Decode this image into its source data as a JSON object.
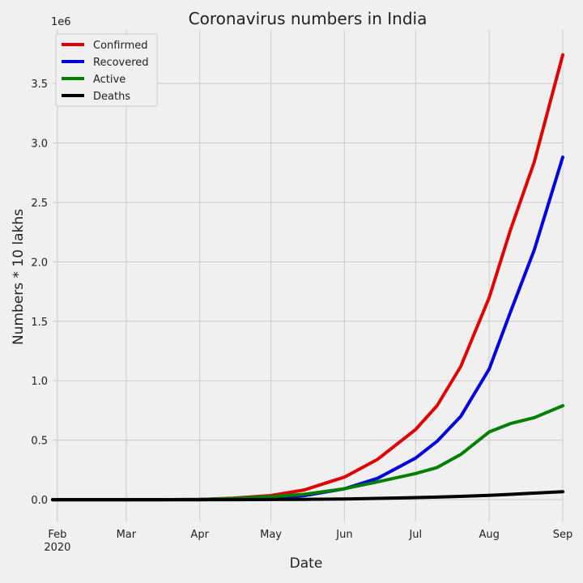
{
  "chart_data": {
    "type": "line",
    "title": "Coronavirus numbers in India",
    "xlabel": "Date",
    "ylabel": "Numbers * 10 lakhs",
    "offset_label": "1e6",
    "x_ticks": [
      {
        "date": "2020-02-01",
        "label": "Feb",
        "sublabel": "2020"
      },
      {
        "date": "2020-03-01",
        "label": "Mar"
      },
      {
        "date": "2020-04-01",
        "label": "Apr"
      },
      {
        "date": "2020-05-01",
        "label": "May"
      },
      {
        "date": "2020-06-01",
        "label": "Jun"
      },
      {
        "date": "2020-07-01",
        "label": "Jul"
      },
      {
        "date": "2020-08-01",
        "label": "Aug"
      },
      {
        "date": "2020-09-01",
        "label": "Sep"
      }
    ],
    "y_ticks": [
      0,
      0.5,
      1.0,
      1.5,
      2.0,
      2.5,
      3.0,
      3.5
    ],
    "xlim": [
      "2020-01-30",
      "2020-09-01"
    ],
    "ylim": [
      -0.19,
      3.95
    ],
    "grid": true,
    "legend_position": "top-left",
    "x": [
      "2020-01-30",
      "2020-02-15",
      "2020-03-01",
      "2020-03-15",
      "2020-04-01",
      "2020-04-15",
      "2020-05-01",
      "2020-05-15",
      "2020-06-01",
      "2020-06-15",
      "2020-07-01",
      "2020-07-10",
      "2020-07-20",
      "2020-08-01",
      "2020-08-10",
      "2020-08-20",
      "2020-09-01"
    ],
    "series": [
      {
        "name": "Confirmed",
        "color": "#e00000",
        "values": [
          0,
          0,
          0,
          0,
          0.002,
          0.012,
          0.035,
          0.082,
          0.19,
          0.34,
          0.59,
          0.79,
          1.12,
          1.7,
          2.27,
          2.84,
          3.74
        ]
      },
      {
        "name": "Recovered",
        "color": "#0000e0",
        "values": [
          0,
          0,
          0,
          0,
          0,
          0.002,
          0.009,
          0.034,
          0.092,
          0.18,
          0.35,
          0.49,
          0.7,
          1.1,
          1.58,
          2.1,
          2.88
        ]
      },
      {
        "name": "Active",
        "color": "#008000",
        "values": [
          0,
          0,
          0,
          0,
          0.002,
          0.01,
          0.025,
          0.045,
          0.092,
          0.15,
          0.22,
          0.27,
          0.38,
          0.57,
          0.64,
          0.69,
          0.79
        ]
      },
      {
        "name": "Deaths",
        "color": "#000000",
        "values": [
          0,
          0,
          0,
          0,
          0,
          0,
          0.001,
          0.003,
          0.006,
          0.011,
          0.018,
          0.022,
          0.028,
          0.037,
          0.045,
          0.055,
          0.067
        ]
      }
    ]
  }
}
